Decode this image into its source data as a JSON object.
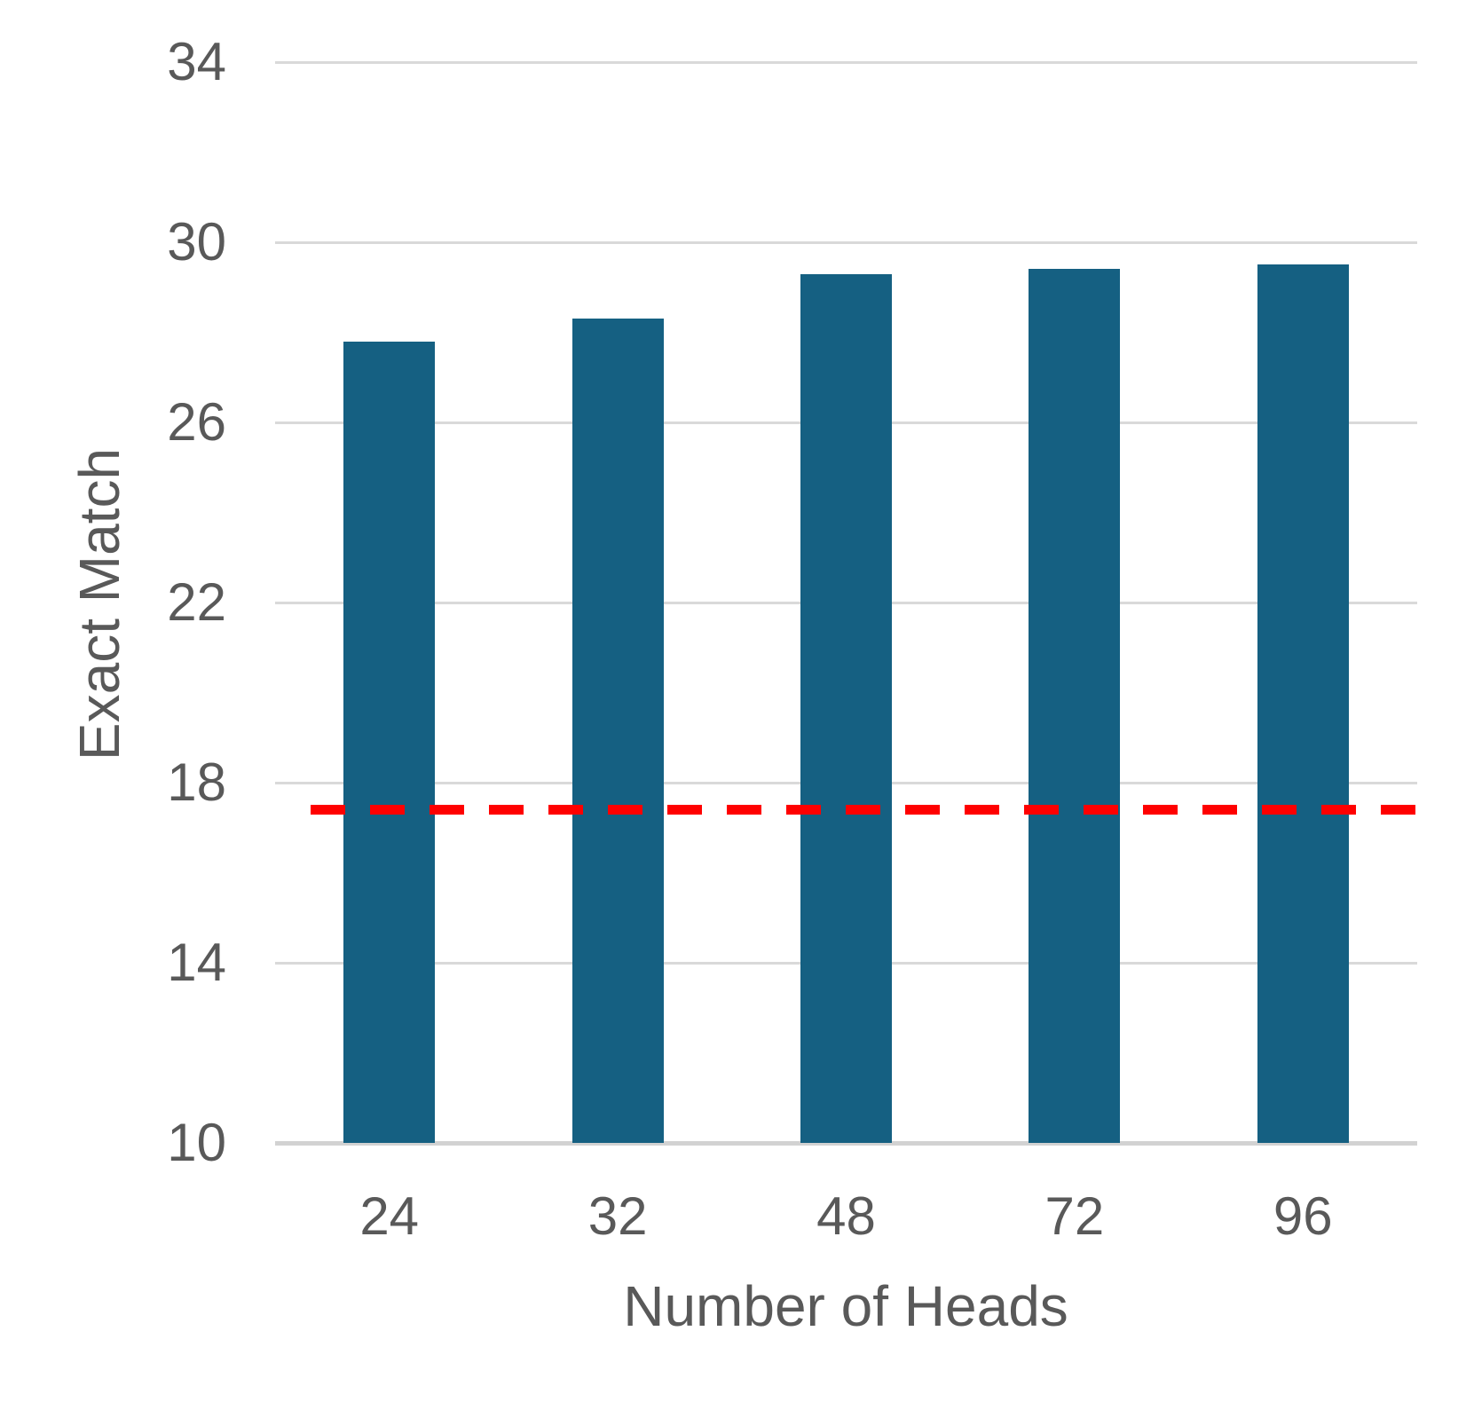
{
  "chart_data": {
    "type": "bar",
    "title": "",
    "categories": [
      "24",
      "32",
      "48",
      "72",
      "96"
    ],
    "values": [
      27.8,
      28.3,
      29.3,
      29.4,
      29.5
    ],
    "series_name": "Exact Match",
    "xlabel": "Number of Heads",
    "ylabel": "Exact Match",
    "ylim": [
      10,
      34
    ],
    "yticks": [
      34,
      30,
      26,
      22,
      18,
      14,
      10
    ],
    "grid": true,
    "legend_position": "none",
    "reference_line": {
      "value": 17.4,
      "style": "dashed",
      "color": "#FF0000"
    },
    "bar_color": "#156082",
    "grid_color": "#D9D9D9",
    "axis_line_color": "#D2D2D2",
    "text_color": "#595959",
    "background_color": "#FFFFFF"
  }
}
